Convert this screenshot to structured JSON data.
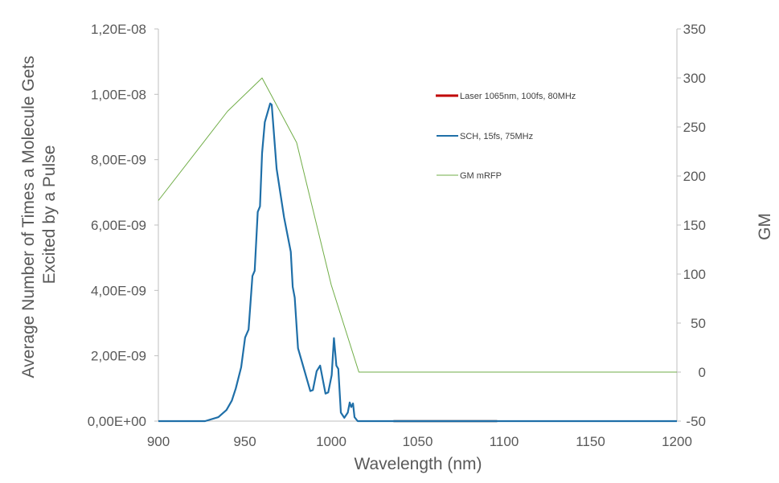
{
  "chart_data": {
    "type": "line",
    "xlabel": "Wavelength (nm)",
    "ylabel_lines": [
      "Average Number of Times a Molecule Gets",
      "Excited by a Pulse"
    ],
    "y2label": "GM",
    "xlim": [
      900,
      1200
    ],
    "ylim": [
      0,
      1.2e-08
    ],
    "y2lim": [
      -50,
      350
    ],
    "x_ticks": [
      "900",
      "950",
      "1000",
      "1050",
      "1100",
      "1150",
      "1200"
    ],
    "x_tick_values": [
      900,
      950,
      1000,
      1050,
      1100,
      1150,
      1200
    ],
    "y_ticks": [
      "0,00E+00",
      "2,00E-09",
      "4,00E-09",
      "6,00E-09",
      "8,00E-09",
      "1,00E-08",
      "1,20E-08"
    ],
    "y_tick_values": [
      0,
      2e-09,
      4e-09,
      6e-09,
      8e-09,
      1e-08,
      1.2e-08
    ],
    "y2_ticks": [
      "-50",
      "0",
      "50",
      "100",
      "150",
      "200",
      "250",
      "300",
      "350"
    ],
    "y2_tick_values": [
      -50,
      0,
      50,
      100,
      150,
      200,
      250,
      300,
      350
    ],
    "grid": false,
    "legend_position": "top-right",
    "series": [
      {
        "name": "Laser 1065nm, 100fs, 80MHz",
        "color": "#c00000",
        "axis": "left",
        "x": [
          1036,
          1096
        ],
        "y": [
          0,
          0
        ]
      },
      {
        "name": "SCH, 15fs, 75MHz",
        "color": "#1f6fa8",
        "axis": "left",
        "x": [
          900,
          927,
          934.7,
          939.4,
          942.5,
          944.8,
          947.9,
          950.2,
          952.2,
          954.4,
          955.7,
          957.5,
          958.8,
          960,
          961.6,
          964.7,
          965.6,
          968.4,
          972.7,
          976.6,
          977.7,
          978.9,
          980.8,
          987.9,
          989.4,
          991.6,
          993.6,
          996.7,
          998.3,
          1000.3,
          1001.6,
          1003,
          1004.1,
          1005.6,
          1007.6,
          1009.6,
          1010.7,
          1011.6,
          1012.6,
          1013.5,
          1015.3,
          1200
        ],
        "y": [
          0,
          0,
          1.2e-10,
          3.4e-10,
          6.3e-10,
          1e-09,
          1.65e-09,
          2.56e-09,
          2.8e-09,
          4.44e-09,
          4.6e-09,
          6.4e-09,
          6.57e-09,
          8.2e-09,
          9.15e-09,
          9.72e-09,
          9.68e-09,
          7.72e-09,
          6.24e-09,
          5.18e-09,
          4.11e-09,
          3.78e-09,
          2.23e-09,
          9.2e-10,
          9.5e-10,
          1.53e-09,
          1.7e-09,
          8.4e-10,
          8.8e-10,
          1.41e-09,
          2.54e-09,
          1.7e-09,
          1.6e-09,
          2.6e-10,
          1e-10,
          2.6e-10,
          5.7e-10,
          4.3e-10,
          5.4e-10,
          1.2e-10,
          0,
          0
        ]
      },
      {
        "name": "GM mRFP",
        "color": "#70ad47",
        "axis": "right",
        "x": [
          900,
          940,
          960,
          980,
          1000,
          1016,
          1200
        ],
        "y": [
          175,
          266,
          300,
          234,
          89,
          0,
          0
        ]
      }
    ]
  }
}
